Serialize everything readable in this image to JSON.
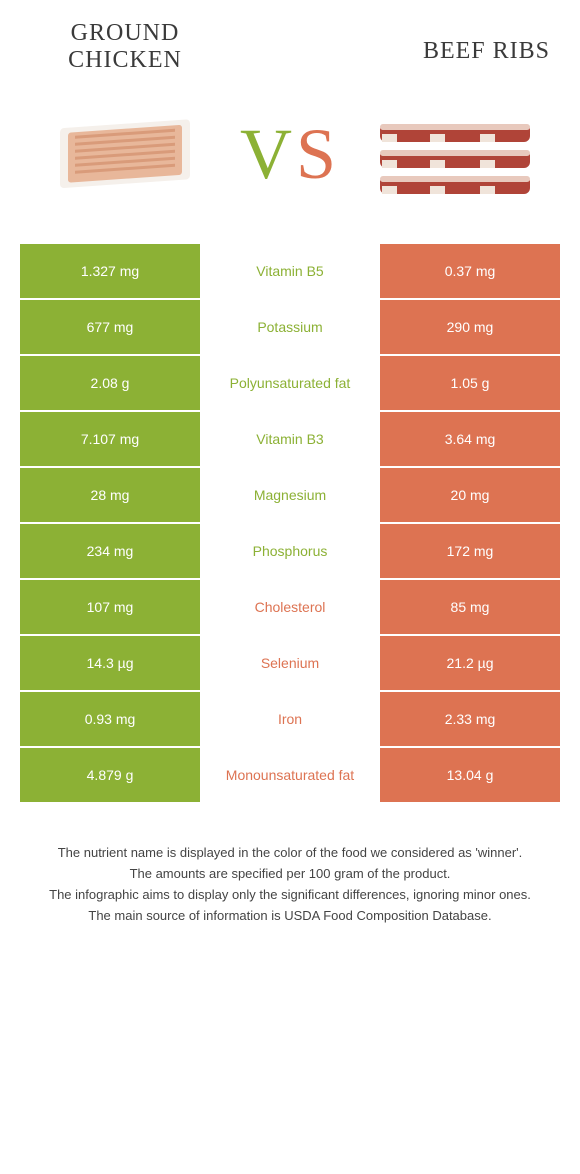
{
  "colors": {
    "green": "#8cb135",
    "orange": "#dd7352",
    "bg": "#ffffff",
    "text": "#3a3a3a"
  },
  "foods": {
    "left": {
      "name": "Ground chicken"
    },
    "right": {
      "name": "Beef ribs"
    }
  },
  "vs": {
    "v": "V",
    "s": "S"
  },
  "rows": [
    {
      "nutrient": "Vitamin B5",
      "left": "1.327 mg",
      "right": "0.37 mg",
      "winner": "left"
    },
    {
      "nutrient": "Potassium",
      "left": "677 mg",
      "right": "290 mg",
      "winner": "left"
    },
    {
      "nutrient": "Polyunsaturated fat",
      "left": "2.08 g",
      "right": "1.05 g",
      "winner": "left"
    },
    {
      "nutrient": "Vitamin B3",
      "left": "7.107 mg",
      "right": "3.64 mg",
      "winner": "left"
    },
    {
      "nutrient": "Magnesium",
      "left": "28 mg",
      "right": "20 mg",
      "winner": "left"
    },
    {
      "nutrient": "Phosphorus",
      "left": "234 mg",
      "right": "172 mg",
      "winner": "left"
    },
    {
      "nutrient": "Cholesterol",
      "left": "107 mg",
      "right": "85 mg",
      "winner": "right"
    },
    {
      "nutrient": "Selenium",
      "left": "14.3 µg",
      "right": "21.2 µg",
      "winner": "right"
    },
    {
      "nutrient": "Iron",
      "left": "0.93 mg",
      "right": "2.33 mg",
      "winner": "right"
    },
    {
      "nutrient": "Monounsaturated fat",
      "left": "4.879 g",
      "right": "13.04 g",
      "winner": "right"
    }
  ],
  "footnotes": [
    "The nutrient name is displayed in the color of the food we considered as 'winner'.",
    "The amounts are specified per 100 gram of the product.",
    "The infographic aims to display only the significant differences, ignoring minor ones.",
    "The main source of information is USDA Food Composition Database."
  ]
}
